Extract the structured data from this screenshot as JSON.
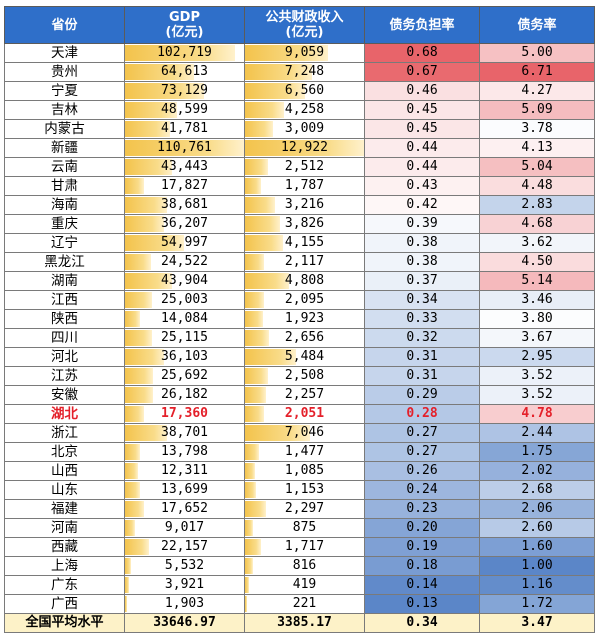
{
  "headers": {
    "province": "省份",
    "gdp": [
      "GDP",
      "(亿元)"
    ],
    "revenue": [
      "公共财政收入",
      "(亿元)"
    ],
    "burden": "债务负担率",
    "ratio": "债务率"
  },
  "rows": [
    {
      "province": "天津",
      "gdp": "102,719",
      "gdp_value": 102719,
      "revenue": "9,059",
      "revenue_value": 9059,
      "burden": "0.68",
      "ratio": "5.00"
    },
    {
      "province": "贵州",
      "gdp": "64,613",
      "gdp_value": 64613,
      "revenue": "7,248",
      "revenue_value": 7248,
      "burden": "0.67",
      "ratio": "6.71"
    },
    {
      "province": "宁夏",
      "gdp": "73,129",
      "gdp_value": 73129,
      "revenue": "6,560",
      "revenue_value": 6560,
      "burden": "0.46",
      "ratio": "4.27"
    },
    {
      "province": "吉林",
      "gdp": "48,599",
      "gdp_value": 48599,
      "revenue": "4,258",
      "revenue_value": 4258,
      "burden": "0.45",
      "ratio": "5.09"
    },
    {
      "province": "内蒙古",
      "gdp": "41,781",
      "gdp_value": 41781,
      "revenue": "3,009",
      "revenue_value": 3009,
      "burden": "0.45",
      "ratio": "3.78"
    },
    {
      "province": "新疆",
      "gdp": "110,761",
      "gdp_value": 110761,
      "revenue": "12,922",
      "revenue_value": 12922,
      "burden": "0.44",
      "ratio": "4.13"
    },
    {
      "province": "云南",
      "gdp": "43,443",
      "gdp_value": 43443,
      "revenue": "2,512",
      "revenue_value": 2512,
      "burden": "0.44",
      "ratio": "5.04"
    },
    {
      "province": "甘肃",
      "gdp": "17,827",
      "gdp_value": 17827,
      "revenue": "1,787",
      "revenue_value": 1787,
      "burden": "0.43",
      "ratio": "4.48"
    },
    {
      "province": "海南",
      "gdp": "38,681",
      "gdp_value": 38681,
      "revenue": "3,216",
      "revenue_value": 3216,
      "burden": "0.42",
      "ratio": "2.83"
    },
    {
      "province": "重庆",
      "gdp": "36,207",
      "gdp_value": 36207,
      "revenue": "3,826",
      "revenue_value": 3826,
      "burden": "0.39",
      "ratio": "4.68"
    },
    {
      "province": "辽宁",
      "gdp": "54,997",
      "gdp_value": 54997,
      "revenue": "4,155",
      "revenue_value": 4155,
      "burden": "0.38",
      "ratio": "3.62"
    },
    {
      "province": "黑龙江",
      "gdp": "24,522",
      "gdp_value": 24522,
      "revenue": "2,117",
      "revenue_value": 2117,
      "burden": "0.38",
      "ratio": "4.50"
    },
    {
      "province": "湖南",
      "gdp": "43,904",
      "gdp_value": 43904,
      "revenue": "4,808",
      "revenue_value": 4808,
      "burden": "0.37",
      "ratio": "5.14"
    },
    {
      "province": "江西",
      "gdp": "25,003",
      "gdp_value": 25003,
      "revenue": "2,095",
      "revenue_value": 2095,
      "burden": "0.34",
      "ratio": "3.46"
    },
    {
      "province": "陕西",
      "gdp": "14,084",
      "gdp_value": 14084,
      "revenue": "1,923",
      "revenue_value": 1923,
      "burden": "0.33",
      "ratio": "3.80"
    },
    {
      "province": "四川",
      "gdp": "25,115",
      "gdp_value": 25115,
      "revenue": "2,656",
      "revenue_value": 2656,
      "burden": "0.32",
      "ratio": "3.67"
    },
    {
      "province": "河北",
      "gdp": "36,103",
      "gdp_value": 36103,
      "revenue": "5,484",
      "revenue_value": 5484,
      "burden": "0.31",
      "ratio": "2.95"
    },
    {
      "province": "江苏",
      "gdp": "25,692",
      "gdp_value": 25692,
      "revenue": "2,508",
      "revenue_value": 2508,
      "burden": "0.31",
      "ratio": "3.52"
    },
    {
      "province": "安徽",
      "gdp": "26,182",
      "gdp_value": 26182,
      "revenue": "2,257",
      "revenue_value": 2257,
      "burden": "0.29",
      "ratio": "3.52"
    },
    {
      "province": "湖北",
      "gdp": "17,360",
      "gdp_value": 17360,
      "revenue": "2,051",
      "revenue_value": 2051,
      "burden": "0.28",
      "ratio": "4.78",
      "highlight": true
    },
    {
      "province": "浙江",
      "gdp": "38,701",
      "gdp_value": 38701,
      "revenue": "7,046",
      "revenue_value": 7046,
      "burden": "0.27",
      "ratio": "2.44"
    },
    {
      "province": "北京",
      "gdp": "13,798",
      "gdp_value": 13798,
      "revenue": "1,477",
      "revenue_value": 1477,
      "burden": "0.27",
      "ratio": "1.75"
    },
    {
      "province": "山西",
      "gdp": "12,311",
      "gdp_value": 12311,
      "revenue": "1,085",
      "revenue_value": 1085,
      "burden": "0.26",
      "ratio": "2.02"
    },
    {
      "province": "山东",
      "gdp": "13,699",
      "gdp_value": 13699,
      "revenue": "1,153",
      "revenue_value": 1153,
      "burden": "0.24",
      "ratio": "2.68"
    },
    {
      "province": "福建",
      "gdp": "17,652",
      "gdp_value": 17652,
      "revenue": "2,297",
      "revenue_value": 2297,
      "burden": "0.23",
      "ratio": "2.06"
    },
    {
      "province": "河南",
      "gdp": "9,017",
      "gdp_value": 9017,
      "revenue": "875",
      "revenue_value": 875,
      "burden": "0.20",
      "ratio": "2.60"
    },
    {
      "province": "西藏",
      "gdp": "22,157",
      "gdp_value": 22157,
      "revenue": "1,717",
      "revenue_value": 1717,
      "burden": "0.19",
      "ratio": "1.60"
    },
    {
      "province": "上海",
      "gdp": "5,532",
      "gdp_value": 5532,
      "revenue": "816",
      "revenue_value": 816,
      "burden": "0.18",
      "ratio": "1.00"
    },
    {
      "province": "广东",
      "gdp": "3,921",
      "gdp_value": 3921,
      "revenue": "419",
      "revenue_value": 419,
      "burden": "0.14",
      "ratio": "1.16"
    },
    {
      "province": "广西",
      "gdp": "1,903",
      "gdp_value": 1903,
      "revenue": "221",
      "revenue_value": 221,
      "burden": "0.13",
      "ratio": "1.72"
    }
  ],
  "average": {
    "label": "全国平均水平",
    "gdp": "33646.97",
    "revenue": "3385.17",
    "burden": "0.34",
    "ratio": "3.47"
  },
  "colors": {
    "header": "#2f6fc9",
    "bar": "#f3c34c",
    "high": "#e8646a",
    "mid": "#ffffff",
    "low": "#5b86c8",
    "highlight_text": "#e4202a",
    "average_row": "#fdf2c8"
  }
}
